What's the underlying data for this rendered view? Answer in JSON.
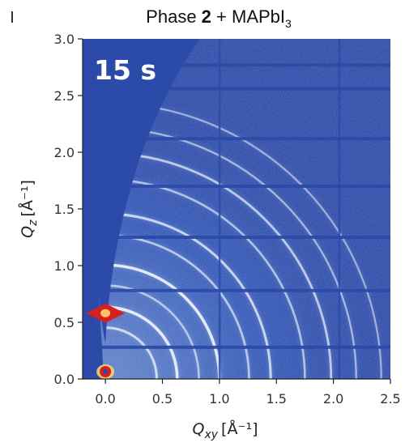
{
  "chart_data": {
    "type": "heatmap",
    "title": {
      "prefix": "Phase ",
      "bold_number": "2",
      "middle": " + MAPbI",
      "subscript": "3"
    },
    "annotation": "15 s",
    "xlabel": {
      "symbol": "Q",
      "subscript": "xy",
      "unit": "[Å⁻¹]"
    },
    "ylabel": {
      "symbol": "Q",
      "subscript": "z",
      "unit": "[Å⁻¹]"
    },
    "xlim": [
      -0.2,
      2.5
    ],
    "ylim": [
      0.0,
      3.0
    ],
    "x_ticks": [
      "0.0",
      "0.5",
      "1.0",
      "1.5",
      "2.0",
      "2.5"
    ],
    "x_tick_values": [
      0.0,
      0.5,
      1.0,
      1.5,
      2.0,
      2.5
    ],
    "y_ticks": [
      "0.0",
      "0.5",
      "1.0",
      "1.5",
      "2.0",
      "2.5",
      "3.0"
    ],
    "y_tick_values": [
      0.0,
      0.5,
      1.0,
      1.5,
      2.0,
      2.5,
      3.0
    ],
    "colormap": {
      "background": "#2c4aa8",
      "low": "#3a62c2",
      "mid": "#8fb3e6",
      "high": "#f4f7fb",
      "hot": "#d81f1f"
    },
    "rings_q": [
      0.45,
      0.63,
      0.82,
      1.0,
      1.26,
      1.45,
      1.75,
      1.98,
      2.2,
      2.42
    ],
    "rings_intensity": [
      0.65,
      0.9,
      0.45,
      0.9,
      0.5,
      0.65,
      0.45,
      0.55,
      0.35,
      0.3
    ],
    "hotspots": [
      {
        "qxy": 0.0,
        "qz": 0.58,
        "intensity": 1.0
      },
      {
        "qxy": 0.0,
        "qz": 0.05,
        "intensity": 1.0
      }
    ],
    "detector_gaps_qz": [
      0.28,
      0.78,
      1.25,
      1.7,
      2.12,
      2.56,
      2.77
    ],
    "detector_gaps_qxy": [
      1.0,
      2.05
    ],
    "missing_wedge": "the q_z axis (Q_xy≈0), widening with Q_z",
    "grid": false,
    "legend": "none"
  }
}
